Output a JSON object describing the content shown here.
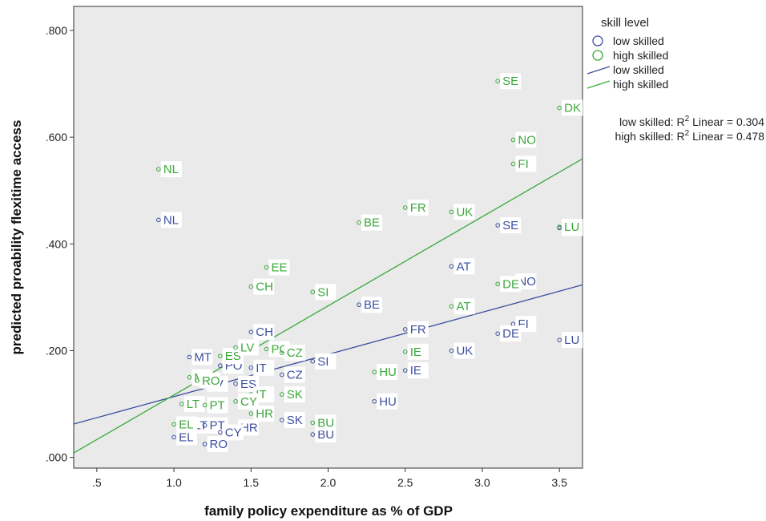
{
  "chart_data": {
    "type": "scatter",
    "xlabel": "family policy expenditure as % of GDP",
    "ylabel": "predicted proability flexitime access",
    "xlim": [
      0.35,
      3.65
    ],
    "ylim": [
      -0.02,
      0.845
    ],
    "x_ticks": [
      {
        "value": 0.5,
        "label": ".5"
      },
      {
        "value": 1.0,
        "label": "1.0"
      },
      {
        "value": 1.5,
        "label": "1.5"
      },
      {
        "value": 2.0,
        "label": "2.0"
      },
      {
        "value": 2.5,
        "label": "2.5"
      },
      {
        "value": 3.0,
        "label": "3.0"
      },
      {
        "value": 3.5,
        "label": "3.5"
      }
    ],
    "y_ticks": [
      {
        "value": 0.0,
        "label": ".000"
      },
      {
        "value": 0.2,
        "label": ".200"
      },
      {
        "value": 0.4,
        "label": ".400"
      },
      {
        "value": 0.6,
        "label": ".600"
      },
      {
        "value": 0.8,
        "label": ".800"
      }
    ],
    "grid": false,
    "legend": {
      "title": "skill level",
      "position": "right",
      "items": [
        {
          "label": "low skilled",
          "kind": "marker",
          "series": "low"
        },
        {
          "label": "high skilled",
          "kind": "marker",
          "series": "high"
        },
        {
          "label": "low skilled",
          "kind": "line",
          "series": "low"
        },
        {
          "label": "high skilled",
          "kind": "line",
          "series": "high"
        }
      ]
    },
    "r2": [
      {
        "prefix": "low skilled: R",
        "sup": "2",
        "suffix": " Linear = 0.304"
      },
      {
        "prefix": "high skilled: R",
        "sup": "2",
        "suffix": " Linear = 0.478"
      }
    ],
    "series": [
      {
        "name": "low skilled",
        "key": "low",
        "color": "#3d4f9f",
        "fit": {
          "intercept": 0.035,
          "slope": 0.079
        },
        "points": [
          {
            "label": "NL",
            "x": 0.9,
            "y": 0.445
          },
          {
            "label": "SE",
            "x": 3.1,
            "y": 0.435
          },
          {
            "label": "DK",
            "x": 3.5,
            "y": 0.43
          },
          {
            "label": "AT",
            "x": 2.8,
            "y": 0.358
          },
          {
            "label": "NO",
            "x": 3.2,
            "y": 0.33
          },
          {
            "label": "BE",
            "x": 2.2,
            "y": 0.286
          },
          {
            "label": "FI",
            "x": 3.2,
            "y": 0.25
          },
          {
            "label": "FR",
            "x": 2.5,
            "y": 0.24
          },
          {
            "label": "CH",
            "x": 1.5,
            "y": 0.235
          },
          {
            "label": "DE",
            "x": 3.1,
            "y": 0.232
          },
          {
            "label": "LU",
            "x": 3.5,
            "y": 0.22
          },
          {
            "label": "UK",
            "x": 2.8,
            "y": 0.2
          },
          {
            "label": "MT",
            "x": 1.1,
            "y": 0.188
          },
          {
            "label": "SI",
            "x": 1.9,
            "y": 0.18
          },
          {
            "label": "PO",
            "x": 1.3,
            "y": 0.172
          },
          {
            "label": "IT",
            "x": 1.5,
            "y": 0.168
          },
          {
            "label": "CZ",
            "x": 1.7,
            "y": 0.155
          },
          {
            "label": "IE",
            "x": 2.5,
            "y": 0.163
          },
          {
            "label": "LV",
            "x": 1.2,
            "y": 0.138
          },
          {
            "label": "ES",
            "x": 1.4,
            "y": 0.138
          },
          {
            "label": "LT",
            "x": 1.1,
            "y": 0.06
          },
          {
            "label": "HU",
            "x": 2.3,
            "y": 0.105
          },
          {
            "label": "SK",
            "x": 1.7,
            "y": 0.07
          },
          {
            "label": "PT",
            "x": 1.2,
            "y": 0.06
          },
          {
            "label": "HR",
            "x": 1.4,
            "y": 0.056
          },
          {
            "label": "BU",
            "x": 1.9,
            "y": 0.043
          },
          {
            "label": "CY",
            "x": 1.3,
            "y": 0.047
          },
          {
            "label": "EL",
            "x": 1.0,
            "y": 0.038
          },
          {
            "label": "RO",
            "x": 1.2,
            "y": 0.025
          }
        ]
      },
      {
        "name": "high skilled",
        "key": "high",
        "color": "#3aa83a",
        "fit": {
          "intercept": -0.05,
          "slope": 0.167
        },
        "points": [
          {
            "label": "SE",
            "x": 3.1,
            "y": 0.705
          },
          {
            "label": "DK",
            "x": 3.5,
            "y": 0.655
          },
          {
            "label": "NO",
            "x": 3.2,
            "y": 0.595
          },
          {
            "label": "NL",
            "x": 0.9,
            "y": 0.54
          },
          {
            "label": "FI",
            "x": 3.2,
            "y": 0.55
          },
          {
            "label": "FR",
            "x": 2.5,
            "y": 0.468
          },
          {
            "label": "UK",
            "x": 2.8,
            "y": 0.46
          },
          {
            "label": "BE",
            "x": 2.2,
            "y": 0.44
          },
          {
            "label": "LU",
            "x": 3.5,
            "y": 0.432
          },
          {
            "label": "EE",
            "x": 1.6,
            "y": 0.356
          },
          {
            "label": "DE",
            "x": 3.1,
            "y": 0.325
          },
          {
            "label": "CH",
            "x": 1.5,
            "y": 0.32
          },
          {
            "label": "SI",
            "x": 1.9,
            "y": 0.31
          },
          {
            "label": "AT",
            "x": 2.8,
            "y": 0.283
          },
          {
            "label": "ES",
            "x": 1.3,
            "y": 0.19
          },
          {
            "label": "LV",
            "x": 1.4,
            "y": 0.206
          },
          {
            "label": "PO",
            "x": 1.6,
            "y": 0.203
          },
          {
            "label": "CZ",
            "x": 1.7,
            "y": 0.196
          },
          {
            "label": "IE",
            "x": 2.5,
            "y": 0.198
          },
          {
            "label": "HU",
            "x": 2.3,
            "y": 0.16
          },
          {
            "label": "MT",
            "x": 1.1,
            "y": 0.15
          },
          {
            "label": "RO",
            "x": 1.15,
            "y": 0.144
          },
          {
            "label": "IT",
            "x": 1.5,
            "y": 0.118
          },
          {
            "label": "SK",
            "x": 1.7,
            "y": 0.118
          },
          {
            "label": "LT",
            "x": 1.05,
            "y": 0.1
          },
          {
            "label": "CY",
            "x": 1.4,
            "y": 0.105
          },
          {
            "label": "PT",
            "x": 1.2,
            "y": 0.098
          },
          {
            "label": "HR",
            "x": 1.5,
            "y": 0.082
          },
          {
            "label": "BU",
            "x": 1.9,
            "y": 0.065
          },
          {
            "label": "EL",
            "x": 1.0,
            "y": 0.062
          }
        ]
      }
    ]
  }
}
